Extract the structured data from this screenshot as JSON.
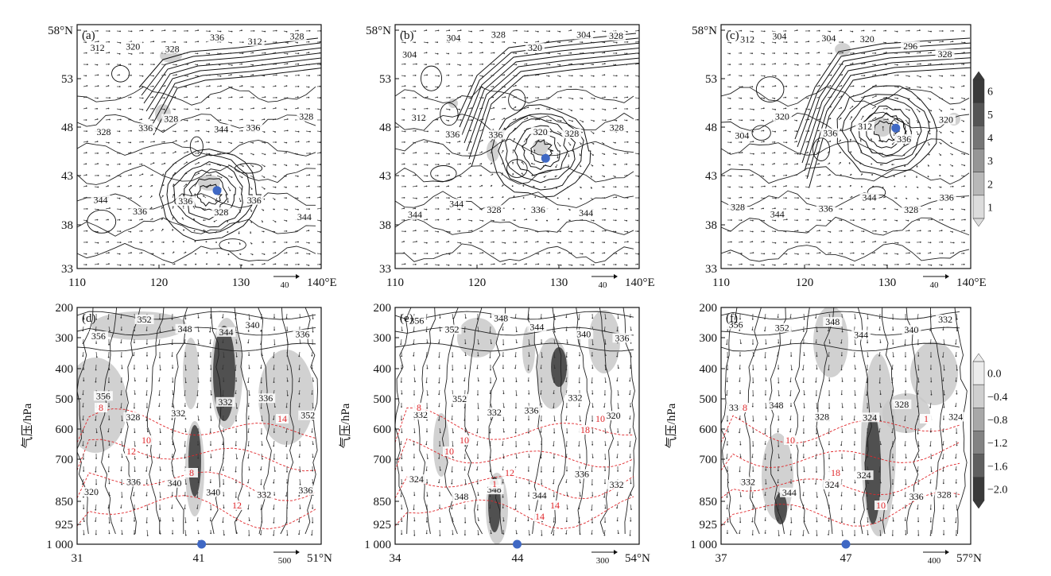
{
  "chart_data": [
    {
      "panel": "(a)",
      "type": "contour",
      "x_ticks": [
        "110",
        "120",
        "130",
        "140°E"
      ],
      "y_ticks": [
        "58°N",
        "53",
        "48",
        "43",
        "38",
        "33"
      ],
      "xlim": [
        110,
        140
      ],
      "ylim": [
        33,
        58
      ],
      "contour_labels": [
        "312",
        "320",
        "328",
        "336",
        "312",
        "328",
        "328",
        "336",
        "328",
        "344",
        "336",
        "328",
        "344",
        "336",
        "336",
        "328",
        "336",
        "344"
      ],
      "ref_vector": "40",
      "marker": {
        "x": 127.2,
        "y": 41.0
      }
    },
    {
      "panel": "(b)",
      "type": "contour",
      "x_ticks": [
        "110",
        "120",
        "130",
        "140°E"
      ],
      "y_ticks": [
        "58°N",
        "53",
        "48",
        "43",
        "38",
        "33"
      ],
      "xlim": [
        110,
        140
      ],
      "ylim": [
        33,
        58
      ],
      "contour_labels": [
        "304",
        "304",
        "328",
        "320",
        "304",
        "328",
        "312",
        "336",
        "336",
        "320",
        "328",
        "328",
        "344",
        "344",
        "328",
        "336",
        "344"
      ],
      "ref_vector": "40",
      "marker": {
        "x": 128.5,
        "y": 44.3
      }
    },
    {
      "panel": "(c)",
      "type": "contour",
      "x_ticks": [
        "110",
        "120",
        "130",
        "140°E"
      ],
      "y_ticks": [
        "58°N",
        "53",
        "48",
        "43",
        "38",
        "33"
      ],
      "xlim": [
        110,
        140
      ],
      "ylim": [
        33,
        58
      ],
      "contour_labels": [
        "312",
        "304",
        "304",
        "320",
        "296",
        "328",
        "304",
        "320",
        "336",
        "312",
        "336",
        "320",
        "328",
        "344",
        "336",
        "344",
        "328",
        "336"
      ],
      "ref_vector": "40",
      "marker": {
        "x": 131.0,
        "y": 47.4
      }
    },
    {
      "panel": "(d)",
      "type": "contour",
      "x_ticks": [
        "31",
        "41",
        "51°N"
      ],
      "y_ticks": [
        "200",
        "300",
        "400",
        "500",
        "600",
        "700",
        "850",
        "925",
        "1 000"
      ],
      "xlim": [
        31,
        51
      ],
      "ylim": [
        1000,
        200
      ],
      "ylabel": "气压/hPa",
      "contour_labels": [
        "356",
        "352",
        "348",
        "344",
        "340",
        "336",
        "356",
        "328",
        "332",
        "332",
        "336",
        "352",
        "320",
        "336",
        "340",
        "340",
        "332",
        "336"
      ],
      "red_labels": [
        "8",
        "10",
        "8",
        "12",
        "14",
        "12"
      ],
      "ref_vector": "500",
      "marker": {
        "x": 41.2
      }
    },
    {
      "panel": "(e)",
      "type": "contour",
      "x_ticks": [
        "34",
        "44",
        "54°N"
      ],
      "y_ticks": [
        "200",
        "300",
        "400",
        "500",
        "600",
        "700",
        "850",
        "925",
        "1 000"
      ],
      "xlim": [
        34,
        54
      ],
      "ylim": [
        1000,
        200
      ],
      "ylabel": "气压/hPa",
      "contour_labels": [
        "356",
        "352",
        "348",
        "344",
        "340",
        "336",
        "332",
        "352",
        "332",
        "336",
        "332",
        "320",
        "324",
        "348",
        "348",
        "344",
        "336",
        "332"
      ],
      "red_labels": [
        "8",
        "10",
        "12",
        "14",
        "10",
        "10",
        "1",
        "14",
        "18"
      ],
      "ref_vector": "300",
      "marker": {
        "x": 44.0
      }
    },
    {
      "panel": "(f)",
      "type": "contour",
      "x_ticks": [
        "37",
        "47",
        "57°N"
      ],
      "y_ticks": [
        "200",
        "300",
        "400",
        "500",
        "600",
        "700",
        "850",
        "925",
        "1 000"
      ],
      "xlim": [
        37,
        57
      ],
      "ylim": [
        1000,
        200
      ],
      "ylabel": "气压/hPa",
      "contour_labels": [
        "356",
        "352",
        "348",
        "344",
        "340",
        "332",
        "336",
        "348",
        "328",
        "324",
        "328",
        "324",
        "332",
        "344",
        "324",
        "324",
        "336",
        "328"
      ],
      "red_labels": [
        "8",
        "10",
        "18",
        "10",
        "1"
      ],
      "ref_vector": "400",
      "marker": {
        "x": 47.0
      }
    }
  ],
  "colorbars": [
    {
      "levels": [
        "6",
        "5",
        "4",
        "3",
        "2",
        "1"
      ],
      "colors": [
        "#3a3a3a",
        "#555555",
        "#757575",
        "#969696",
        "#b8b8b8",
        "#dcdcdc"
      ]
    },
    {
      "levels": [
        "0.0",
        "−0.4",
        "−0.8",
        "−1.2",
        "−1.6",
        "−2.0"
      ],
      "colors": [
        "#ececec",
        "#cfcfcf",
        "#a8a8a8",
        "#838383",
        "#5f5f5f",
        "#3a3a3a"
      ]
    }
  ],
  "colors": {
    "marker": "#3f68c4",
    "red_contour": "#e0262a",
    "contour": "#111111"
  }
}
